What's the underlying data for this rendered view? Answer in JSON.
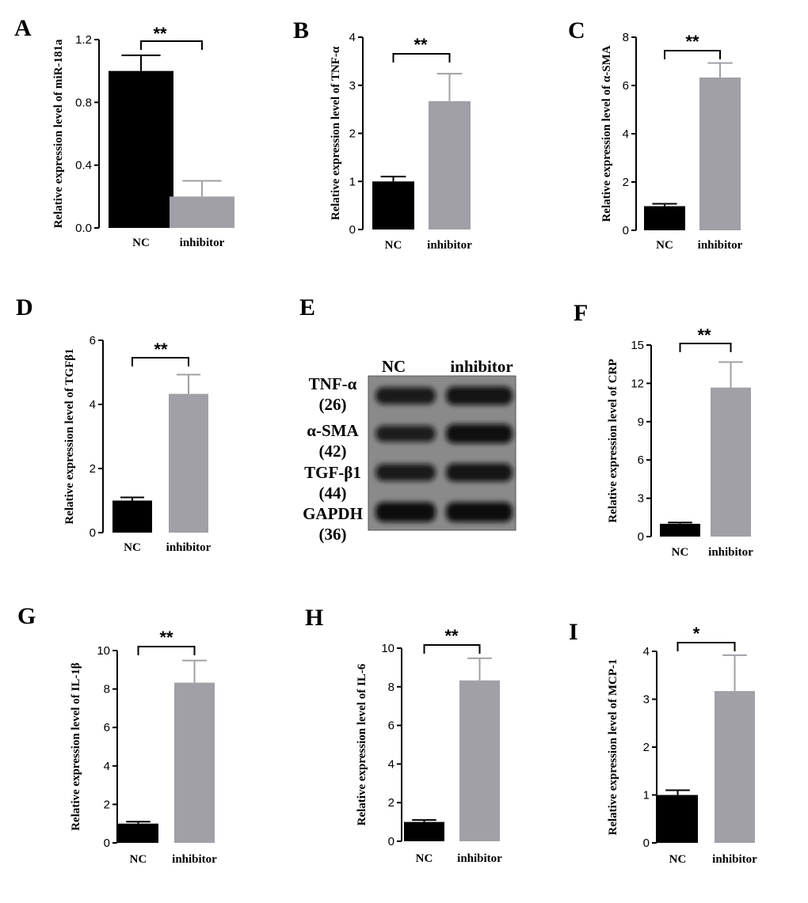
{
  "colors": {
    "nc": "#000000",
    "inhibitor": "#a0a0a6",
    "axis": "#000000"
  },
  "chart_data": [
    {
      "panel": "A",
      "type": "bar",
      "categories": [
        "NC",
        "inhibitor"
      ],
      "values": [
        1.0,
        0.2
      ],
      "errors": [
        0.1,
        0.1
      ],
      "ylabel": "Relative expression level of miR-181a",
      "ylim": [
        0,
        1.2
      ],
      "yticks": [
        "0.0",
        "0.4",
        "0.8",
        "1.2"
      ],
      "yticks_val": [
        0,
        0.4,
        0.8,
        1.2
      ],
      "significance": "**"
    },
    {
      "panel": "B",
      "type": "bar",
      "categories": [
        "NC",
        "inhibitor"
      ],
      "values": [
        1.0,
        2.67
      ],
      "errors": [
        0.1,
        0.57
      ],
      "ylabel": "Relative expression level of TNF-α",
      "ylim": [
        0,
        4
      ],
      "yticks": [
        "0",
        "1",
        "2",
        "3",
        "4"
      ],
      "yticks_val": [
        0,
        1,
        2,
        3,
        4
      ],
      "significance": "**"
    },
    {
      "panel": "C",
      "type": "bar",
      "categories": [
        "NC",
        "inhibitor"
      ],
      "values": [
        1.0,
        6.33
      ],
      "errors": [
        0.1,
        0.6
      ],
      "ylabel": "Relative expression level of α-SMA",
      "ylim": [
        0,
        8
      ],
      "yticks": [
        "0",
        "2",
        "4",
        "6",
        "8"
      ],
      "yticks_val": [
        0,
        2,
        4,
        6,
        8
      ],
      "significance": "**"
    },
    {
      "panel": "D",
      "type": "bar",
      "categories": [
        "NC",
        "inhibitor"
      ],
      "values": [
        1.0,
        4.33
      ],
      "errors": [
        0.1,
        0.6
      ],
      "ylabel": "Relative expression level of TGFβ1",
      "ylim": [
        0,
        6
      ],
      "yticks": [
        "0",
        "2",
        "4",
        "6"
      ],
      "yticks_val": [
        0,
        2,
        4,
        6
      ],
      "significance": "**"
    },
    {
      "panel": "F",
      "type": "bar",
      "categories": [
        "NC",
        "inhibitor"
      ],
      "values": [
        1.0,
        11.67
      ],
      "errors": [
        0.1,
        2.0
      ],
      "ylabel": "Relative expression level of CRP",
      "ylim": [
        0,
        15
      ],
      "yticks": [
        "0",
        "3",
        "6",
        "9",
        "12",
        "15"
      ],
      "yticks_val": [
        0,
        3,
        6,
        9,
        12,
        15
      ],
      "significance": "**"
    },
    {
      "panel": "G",
      "type": "bar",
      "categories": [
        "NC",
        "inhibitor"
      ],
      "values": [
        1.0,
        8.33
      ],
      "errors": [
        0.1,
        1.15
      ],
      "ylabel": "Relative expression level of IL-1β",
      "ylim": [
        0,
        10
      ],
      "yticks": [
        "0",
        "2",
        "4",
        "6",
        "8",
        "10"
      ],
      "yticks_val": [
        0,
        2,
        4,
        6,
        8,
        10
      ],
      "significance": "**"
    },
    {
      "panel": "H",
      "type": "bar",
      "categories": [
        "NC",
        "inhibitor"
      ],
      "values": [
        1.0,
        8.33
      ],
      "errors": [
        0.1,
        1.15
      ],
      "ylabel": "Relative expression level of IL-6",
      "ylim": [
        0,
        10
      ],
      "yticks": [
        "0",
        "2",
        "4",
        "6",
        "8",
        "10"
      ],
      "yticks_val": [
        0,
        2,
        4,
        6,
        8,
        10
      ],
      "significance": "**"
    },
    {
      "panel": "I",
      "type": "bar",
      "categories": [
        "NC",
        "inhibitor"
      ],
      "values": [
        1.0,
        3.17
      ],
      "errors": [
        0.1,
        0.75
      ],
      "ylabel": "Relative expression level of MCP-1",
      "ylim": [
        0,
        4
      ],
      "yticks": [
        "0",
        "1",
        "2",
        "3",
        "4"
      ],
      "yticks_val": [
        0,
        1,
        2,
        3,
        4
      ],
      "significance": "*"
    }
  ],
  "blot": {
    "panel": "E",
    "columns": [
      "NC",
      "inhibitor"
    ],
    "rows": [
      {
        "name": "TNF-α",
        "kda": "(26)",
        "intensity": [
          0.75,
          0.88
        ]
      },
      {
        "name": "α-SMA",
        "kda": "(42)",
        "intensity": [
          0.7,
          0.95
        ]
      },
      {
        "name": "TGF-β1",
        "kda": "(44)",
        "intensity": [
          0.75,
          0.85
        ]
      },
      {
        "name": "GAPDH",
        "kda": "(36)",
        "intensity": [
          1.0,
          1.0
        ]
      }
    ]
  }
}
